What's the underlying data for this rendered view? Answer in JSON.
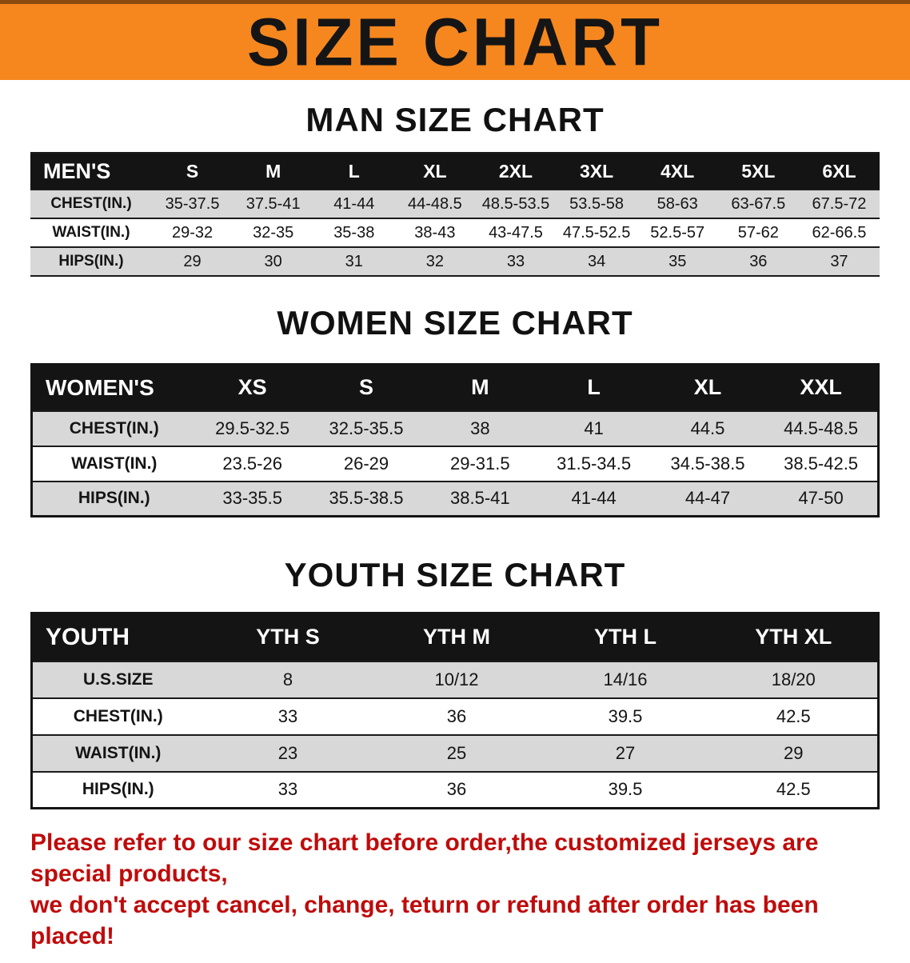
{
  "banner": {
    "title": "SIZE CHART"
  },
  "sections": [
    {
      "heading": "MAN SIZE CHART",
      "table": {
        "id": "mens",
        "columns": [
          "MEN'S",
          "S",
          "M",
          "L",
          "XL",
          "2XL",
          "3XL",
          "4XL",
          "5XL",
          "6XL"
        ],
        "rows": [
          {
            "label": "CHEST(IN.)",
            "values": [
              "35-37.5",
              "37.5-41",
              "41-44",
              "44-48.5",
              "48.5-53.5",
              "53.5-58",
              "58-63",
              "63-67.5",
              "67.5-72"
            ]
          },
          {
            "label": "WAIST(IN.)",
            "values": [
              "29-32",
              "32-35",
              "35-38",
              "38-43",
              "43-47.5",
              "47.5-52.5",
              "52.5-57",
              "57-62",
              "62-66.5"
            ]
          },
          {
            "label": "HIPS(IN.)",
            "values": [
              "29",
              "30",
              "31",
              "32",
              "33",
              "34",
              "35",
              "36",
              "37"
            ]
          }
        ]
      }
    },
    {
      "heading": "WOMEN SIZE CHART",
      "table": {
        "id": "womens",
        "columns": [
          "WOMEN'S",
          "XS",
          "S",
          "M",
          "L",
          "XL",
          "XXL"
        ],
        "rows": [
          {
            "label": "CHEST(IN.)",
            "values": [
              "29.5-32.5",
              "32.5-35.5",
              "38",
              "41",
              "44.5",
              "44.5-48.5"
            ]
          },
          {
            "label": "WAIST(IN.)",
            "values": [
              "23.5-26",
              "26-29",
              "29-31.5",
              "31.5-34.5",
              "34.5-38.5",
              "38.5-42.5"
            ]
          },
          {
            "label": "HIPS(IN.)",
            "values": [
              "33-35.5",
              "35.5-38.5",
              "38.5-41",
              "41-44",
              "44-47",
              "47-50"
            ]
          }
        ]
      }
    },
    {
      "heading": "YOUTH SIZE CHART",
      "table": {
        "id": "youth",
        "columns": [
          "YOUTH",
          "YTH S",
          "YTH M",
          "YTH L",
          "YTH XL"
        ],
        "rows": [
          {
            "label": "U.S.SIZE",
            "values": [
              "8",
              "10/12",
              "14/16",
              "18/20"
            ]
          },
          {
            "label": "CHEST(IN.)",
            "values": [
              "33",
              "36",
              "39.5",
              "42.5"
            ]
          },
          {
            "label": "WAIST(IN.)",
            "values": [
              "23",
              "25",
              "27",
              "29"
            ]
          },
          {
            "label": "HIPS(IN.)",
            "values": [
              "33",
              "36",
              "39.5",
              "42.5"
            ]
          }
        ]
      }
    }
  ],
  "note": {
    "line1": "Please refer to our size chart before order,the customized jerseys are special products,",
    "line2": "we don't accept cancel, change, teturn or refund after order has been placed!"
  },
  "colors": {
    "banner_bg": "#f6871f",
    "header_bg": "#141414",
    "row_shade": "#d8d8d8",
    "note_red": "#bf0b0b"
  }
}
